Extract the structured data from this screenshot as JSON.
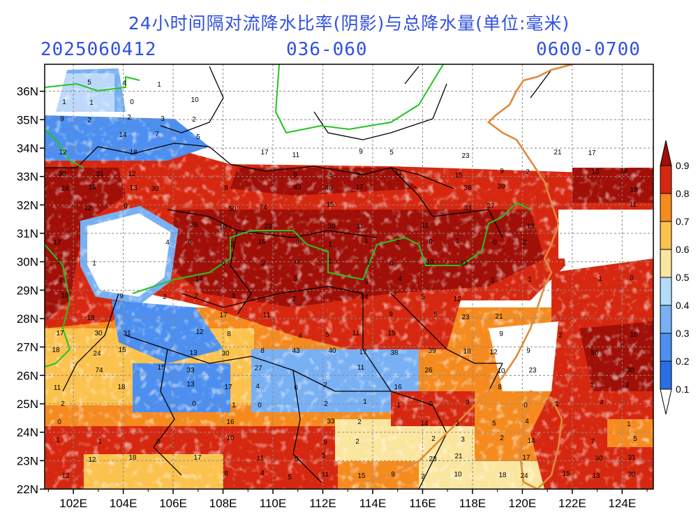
{
  "title": "24小时间隔对流降水比率(阴影)与总降水量(单位:毫米)",
  "subtitle": {
    "date": "2025060412",
    "forecast_range": "036-060",
    "time_window": "0600-0700"
  },
  "axes": {
    "lon_ticks": [
      "102E",
      "104E",
      "106E",
      "108E",
      "110E",
      "112E",
      "114E",
      "116E",
      "118E",
      "120E",
      "122E",
      "124E"
    ],
    "lat_ticks": [
      "36N",
      "35N",
      "34N",
      "33N",
      "32N",
      "31N",
      "30N",
      "29N",
      "28N",
      "27N",
      "26N",
      "25N",
      "24N",
      "23N",
      "22N"
    ]
  },
  "colorbar": {
    "labels": [
      "0.1",
      "0.2",
      "0.3",
      "0.4",
      "0.5",
      "0.6",
      "0.7",
      "0.8",
      "0.9"
    ],
    "colors": [
      "#2a6ee6",
      "#4c8ff0",
      "#78b0f4",
      "#b4dcf8",
      "#fbe6a0",
      "#fbc24e",
      "#f58a1e",
      "#d62810",
      "#a01008"
    ]
  },
  "map_labels": {
    "rain_amounts": [
      "5",
      "4",
      "1",
      "1",
      "1",
      "0",
      "10",
      "9",
      "2",
      "2",
      "3",
      "2",
      "14",
      "7",
      "5",
      "12",
      "18",
      "17",
      "11",
      "9",
      "5",
      "23",
      "21",
      "17",
      "30",
      "31",
      "12",
      "8",
      "4",
      "5",
      "11",
      "15",
      "9",
      "2",
      "10",
      "18",
      "24",
      "15",
      "13",
      "30",
      "8",
      "43",
      "40",
      "17",
      "38",
      "39",
      "18",
      "12",
      "9",
      "50",
      "74",
      "15",
      "33",
      "27",
      "11",
      "26",
      "10",
      "23",
      "30",
      "11",
      "18",
      "13",
      "17",
      "4",
      "6",
      "2",
      "16",
      "8",
      "1",
      "3",
      "2",
      "0",
      "1",
      "0",
      "2",
      "1",
      "1",
      "0",
      "3",
      "0",
      "1",
      "4",
      "0",
      "16",
      "33",
      "2",
      "14",
      "3"
    ]
  }
}
